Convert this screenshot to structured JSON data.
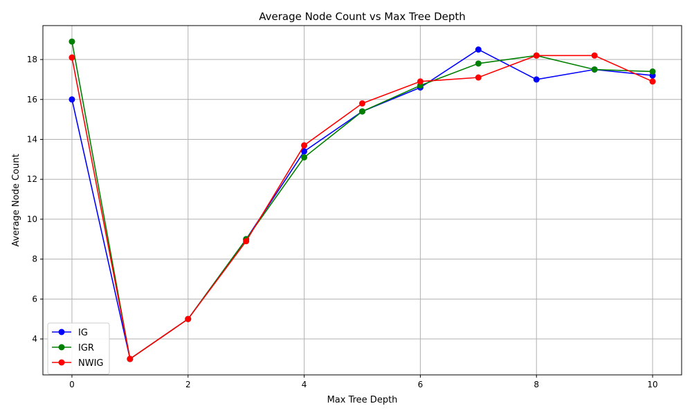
{
  "chart_data": {
    "type": "line",
    "title": "Average Node Count vs Max Tree Depth",
    "xlabel": "Max Tree Depth",
    "ylabel": "Average Node Count",
    "x": [
      0,
      1,
      2,
      3,
      4,
      5,
      6,
      7,
      8,
      9,
      10
    ],
    "xticks": [
      0,
      2,
      4,
      6,
      8,
      10
    ],
    "yticks": [
      4,
      6,
      8,
      10,
      12,
      14,
      16,
      18
    ],
    "xlim": [
      -0.5,
      10.5
    ],
    "ylim": [
      2.2,
      19.7
    ],
    "grid": true,
    "legend_position": "bottom-left",
    "series": [
      {
        "name": "IG",
        "color": "#0000ff",
        "values": [
          16.0,
          3.0,
          5.0,
          9.0,
          13.4,
          15.4,
          16.6,
          18.5,
          17.0,
          17.5,
          17.2
        ]
      },
      {
        "name": "IGR",
        "color": "#008000",
        "values": [
          18.9,
          3.0,
          5.0,
          9.0,
          13.1,
          15.4,
          16.7,
          17.8,
          18.2,
          17.5,
          17.4
        ]
      },
      {
        "name": "NWIG",
        "color": "#ff0000",
        "values": [
          18.1,
          3.0,
          5.0,
          8.9,
          13.7,
          15.8,
          16.9,
          17.1,
          18.2,
          18.2,
          16.9
        ]
      }
    ]
  }
}
